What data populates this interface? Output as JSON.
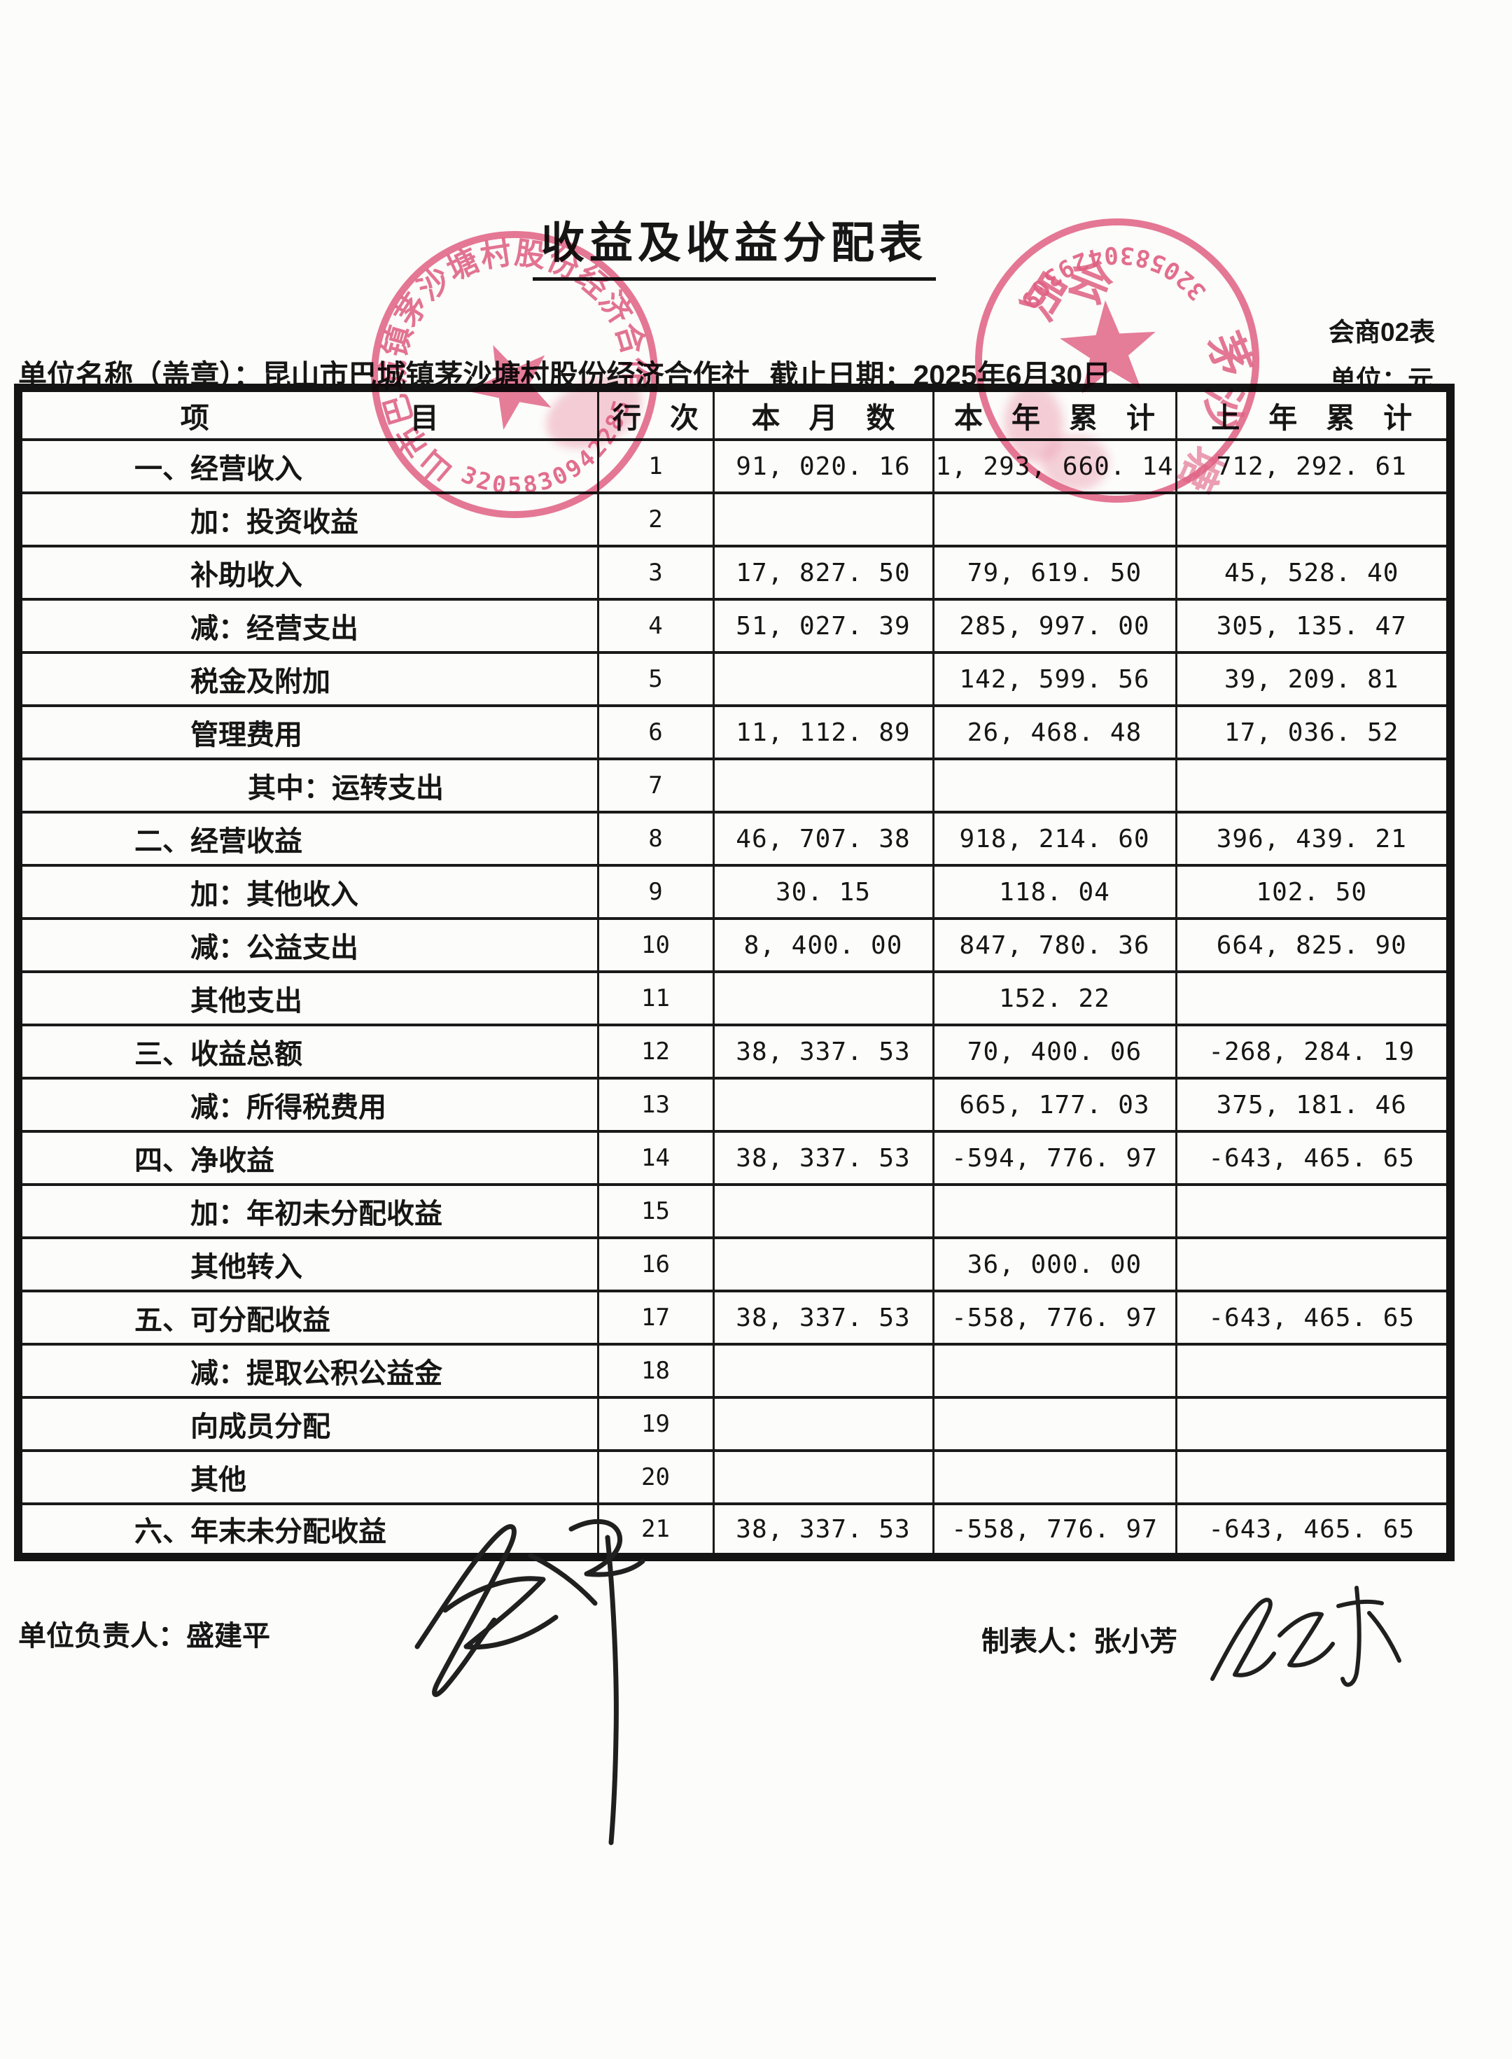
{
  "page": {
    "title": "收益及收益分配表",
    "form_code": "会商02表",
    "org_line": "单位名称（盖章）：昆山市巴城镇茅沙塘村股份经济合作社",
    "date_line": "截止日期：2025年6月30日",
    "unit_line": "单位：元"
  },
  "table": {
    "headers": {
      "item": "项　　　　　　　目",
      "line_no": "行　次",
      "month": "本　月　数",
      "year_total": "本　年　累　计",
      "prev_year_total": "上　年　累　计"
    },
    "rows": [
      {
        "item": "一、经营收入",
        "indent": 0,
        "line": "1",
        "month": "91, 020. 16",
        "year": "1, 293, 660. 14",
        "prev": "712, 292. 61"
      },
      {
        "item": "加：投资收益",
        "indent": 1,
        "line": "2",
        "month": "",
        "year": "",
        "prev": ""
      },
      {
        "item": "补助收入",
        "indent": 1,
        "line": "3",
        "month": "17, 827. 50",
        "year": "79, 619. 50",
        "prev": "45, 528. 40"
      },
      {
        "item": "减：经营支出",
        "indent": 1,
        "line": "4",
        "month": "51, 027. 39",
        "year": "285, 997. 00",
        "prev": "305, 135. 47"
      },
      {
        "item": "税金及附加",
        "indent": 1,
        "line": "5",
        "month": "",
        "year": "142, 599. 56",
        "prev": "39, 209. 81"
      },
      {
        "item": "管理费用",
        "indent": 1,
        "line": "6",
        "month": "11, 112. 89",
        "year": "26, 468. 48",
        "prev": "17, 036. 52"
      },
      {
        "item": "其中：运转支出",
        "indent": 2,
        "line": "7",
        "month": "",
        "year": "",
        "prev": ""
      },
      {
        "item": "二、经营收益",
        "indent": 0,
        "line": "8",
        "month": "46, 707. 38",
        "year": "918, 214. 60",
        "prev": "396, 439. 21"
      },
      {
        "item": "加：其他收入",
        "indent": 1,
        "line": "9",
        "month": "30. 15",
        "year": "118. 04",
        "prev": "102. 50"
      },
      {
        "item": "减：公益支出",
        "indent": 1,
        "line": "10",
        "month": "8, 400. 00",
        "year": "847, 780. 36",
        "prev": "664, 825. 90"
      },
      {
        "item": "其他支出",
        "indent": 1,
        "line": "11",
        "month": "",
        "year": "152. 22",
        "prev": ""
      },
      {
        "item": "三、收益总额",
        "indent": 0,
        "line": "12",
        "month": "38, 337. 53",
        "year": "70, 400. 06",
        "prev": "-268, 284. 19"
      },
      {
        "item": "减：所得税费用",
        "indent": 1,
        "line": "13",
        "month": "",
        "year": "665, 177. 03",
        "prev": "375, 181. 46"
      },
      {
        "item": "四、净收益",
        "indent": 0,
        "line": "14",
        "month": "38, 337. 53",
        "year": "-594, 776. 97",
        "prev": "-643, 465. 65"
      },
      {
        "item": "加：年初未分配收益",
        "indent": 1,
        "line": "15",
        "month": "",
        "year": "",
        "prev": ""
      },
      {
        "item": "其他转入",
        "indent": 1,
        "line": "16",
        "month": "",
        "year": "36, 000. 00",
        "prev": ""
      },
      {
        "item": "五、可分配收益",
        "indent": 0,
        "line": "17",
        "month": "38, 337. 53",
        "year": "-558, 776. 97",
        "prev": "-643, 465. 65"
      },
      {
        "item": "减：提取公积公益金",
        "indent": 1,
        "line": "18",
        "month": "",
        "year": "",
        "prev": ""
      },
      {
        "item": "向成员分配",
        "indent": 1,
        "line": "19",
        "month": "",
        "year": "",
        "prev": ""
      },
      {
        "item": "其他",
        "indent": 1,
        "line": "20",
        "month": "",
        "year": "",
        "prev": ""
      },
      {
        "item": "六、年末未分配收益",
        "indent": 0,
        "line": "21",
        "month": "38, 337. 53",
        "year": "-558, 776. 97",
        "prev": "-643, 465. 65"
      }
    ]
  },
  "stamps": {
    "left": {
      "ring_text": "昆山市巴城镇茅沙塘村股份经济合作社",
      "code": "3205830942285",
      "color": "#e0527a"
    },
    "right": {
      "code": "3205830429309",
      "char_1": "员",
      "char_2": "会",
      "char_3": "茅",
      "char_4": "沙",
      "char_5": "塘",
      "color": "#e0527a"
    }
  },
  "footer": {
    "manager": "单位负责人：盛建平",
    "preparer": "制表人：张小芳",
    "manager_signature": "盛建平",
    "preparer_signature": "张小芳"
  }
}
